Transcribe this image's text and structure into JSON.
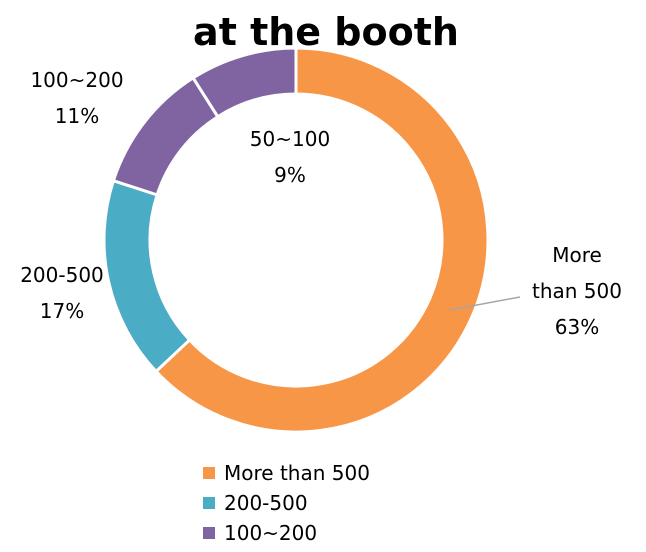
{
  "chart_data": {
    "type": "pie",
    "donut": true,
    "title": "at the booth",
    "categories": [
      "More than 500",
      "200-500",
      "100~200",
      "50~100"
    ],
    "values": [
      63,
      17,
      11,
      9
    ],
    "unit": "%",
    "data_labels": [
      {
        "category": "More than 500",
        "lines": [
          "More",
          "than 500",
          "63%"
        ]
      },
      {
        "category": "200-500",
        "lines": [
          "200-500",
          "17%"
        ]
      },
      {
        "category": "100~200",
        "lines": [
          "100~200",
          "11%"
        ]
      },
      {
        "category": "50~100",
        "lines": [
          "50~100",
          "9%"
        ]
      }
    ],
    "legend": {
      "position": "bottom",
      "entries": [
        "More than 500",
        "200-500",
        "100~200"
      ]
    },
    "colors": [
      "#F79646",
      "#4BACC6",
      "#8064A2",
      "#8064A2"
    ]
  }
}
